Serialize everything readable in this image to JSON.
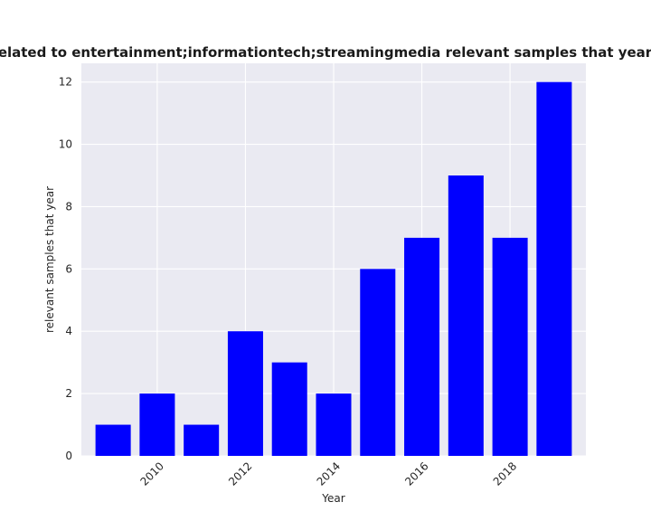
{
  "chart_data": {
    "type": "bar",
    "title": "are related to entertainment;informationtech;streamingmedia relevant samples that year in priv",
    "xlabel": "Year",
    "ylabel": "relevant samples that year",
    "x": [
      2009,
      2010,
      2011,
      2012,
      2013,
      2014,
      2015,
      2016,
      2017,
      2018,
      2019
    ],
    "values": [
      1,
      2,
      1,
      4,
      3,
      2,
      6,
      7,
      9,
      7,
      12
    ],
    "xticks": [
      2010,
      2012,
      2014,
      2016,
      2018
    ],
    "xtick_labels": [
      "2010",
      "2012",
      "2014",
      "2016",
      "2018"
    ],
    "xlim": [
      2008.28,
      2019.72
    ],
    "yticks": [
      0,
      2,
      4,
      6,
      8,
      10,
      12
    ],
    "ytick_labels": [
      "0",
      "2",
      "4",
      "6",
      "8",
      "10",
      "12"
    ],
    "ylim": [
      0,
      12.6
    ],
    "bar_color": "#0000ff",
    "background": "#eaeaf2",
    "grid": true
  }
}
